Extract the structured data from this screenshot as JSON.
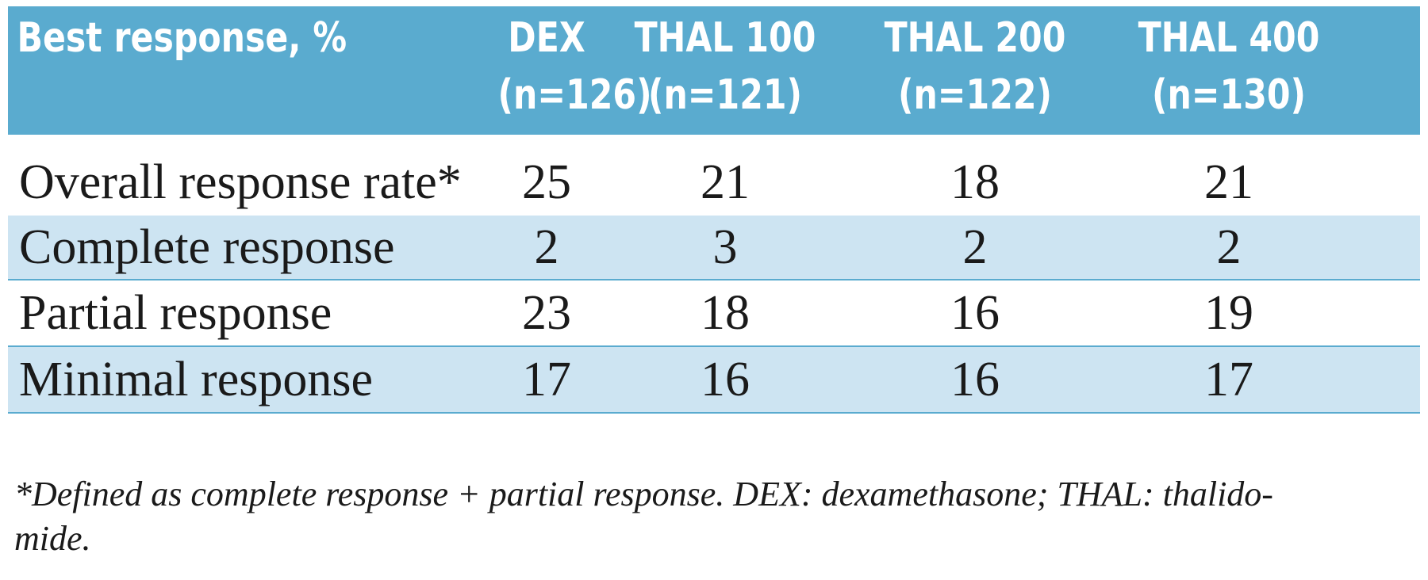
{
  "table": {
    "header": {
      "label": "Best response, %",
      "columns": [
        {
          "name": "DEX",
          "n": "(n=126)"
        },
        {
          "name": "THAL 100",
          "n": "(n=121)"
        },
        {
          "name": "THAL 200",
          "n": "(n=122)"
        },
        {
          "name": "THAL 400",
          "n": "(n=130)"
        }
      ]
    },
    "rows": [
      {
        "label": "Overall response rate*",
        "values": [
          "25",
          "21",
          "18",
          "21"
        ]
      },
      {
        "label": "Complete response",
        "values": [
          "2",
          "3",
          "2",
          "2"
        ]
      },
      {
        "label": "Partial response",
        "values": [
          "23",
          "18",
          "16",
          "19"
        ]
      },
      {
        "label": "Minimal response",
        "values": [
          "17",
          "16",
          "16",
          "17"
        ]
      }
    ],
    "footnote_line1": "*Defined as complete response + partial response. DEX: dexamethasone; THAL: thalido-",
    "footnote_line2": "mide."
  },
  "colors": {
    "header_bg": "#5aabcf",
    "shaded_row_bg": "#cde4f2",
    "header_text": "#ffffff"
  }
}
